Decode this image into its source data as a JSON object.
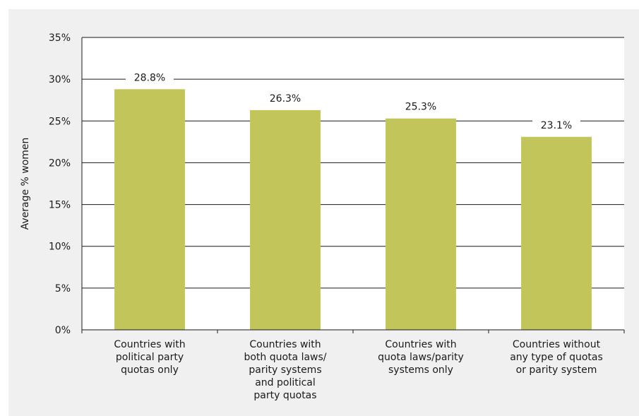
{
  "chart_data": {
    "type": "bar",
    "title": "",
    "xlabel": "",
    "ylabel": "Average % women",
    "ylim": [
      0,
      35
    ],
    "yticks": [
      0,
      5,
      10,
      15,
      20,
      25,
      30,
      35
    ],
    "ytick_format": "%",
    "grid": true,
    "legend": "none",
    "categories": [
      "Countries with political party quotas only",
      "Countries with both quota laws/ parity systems and political party quotas",
      "Countries with quota laws/parity systems only",
      "Countries without any type of quotas or parity system"
    ],
    "category_lines": [
      [
        "Countries with",
        "political party",
        "quotas only"
      ],
      [
        "Countries with",
        "both quota laws/",
        "parity systems",
        "and political",
        "party quotas"
      ],
      [
        "Countries with",
        "quota laws/parity",
        "systems only"
      ],
      [
        "Countries without",
        "any type of quotas",
        "or parity system"
      ]
    ],
    "values": [
      28.8,
      26.3,
      25.3,
      23.1
    ],
    "value_labels": [
      "28.8%",
      "26.3%",
      "25.3%",
      "23.1%"
    ],
    "colors": {
      "bar": "#c1c55a",
      "background": "#f0f0f0",
      "plot_background": "#ffffff",
      "grid": "#1a1a1a",
      "text": "#1a1a1a"
    }
  }
}
